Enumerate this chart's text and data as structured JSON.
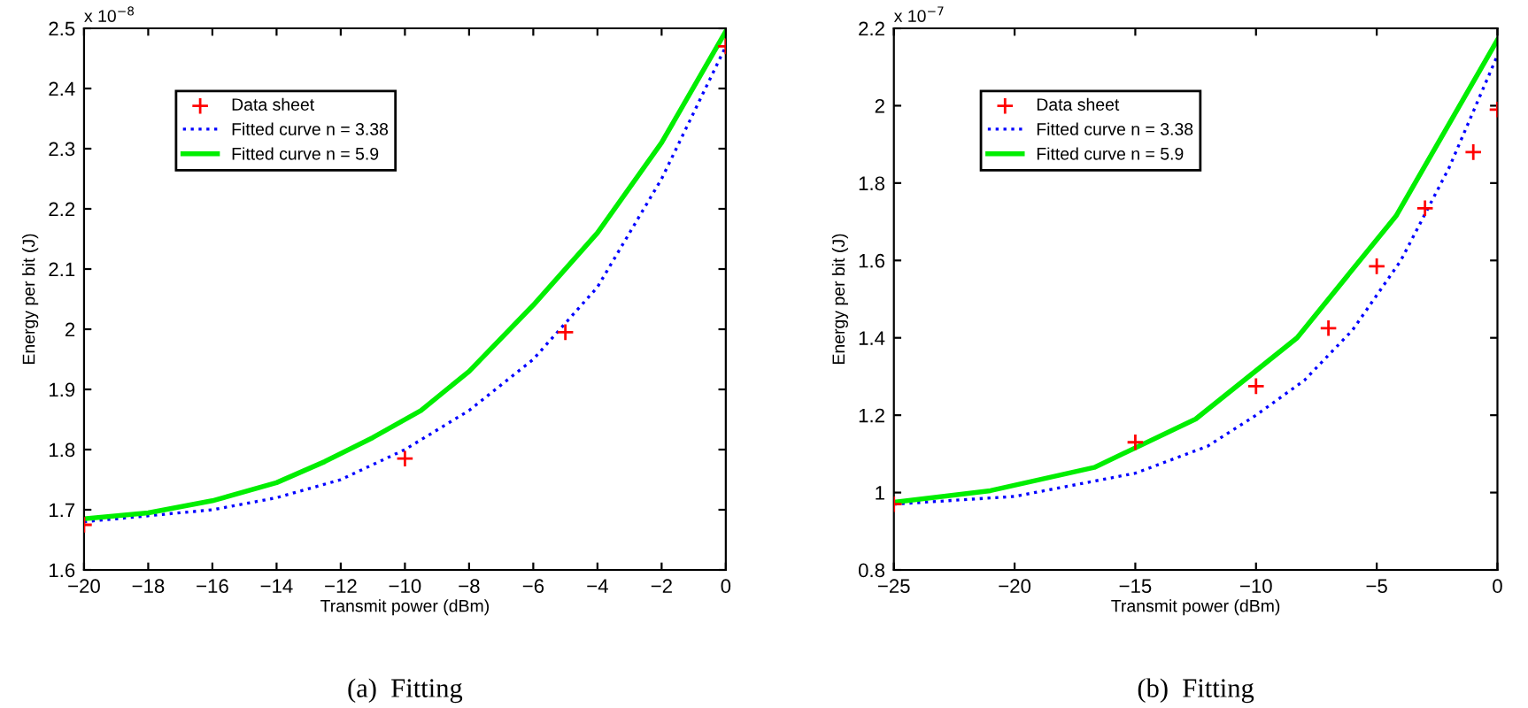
{
  "chart_data": [
    {
      "type": "line",
      "xlabel": "Transmit power (dBm)",
      "ylabel": "Energy per bit (J)",
      "xlim": [
        -20,
        0
      ],
      "xticks": [
        {
          "value": -20,
          "label": "−20"
        },
        {
          "value": -18,
          "label": "−18"
        },
        {
          "value": -16,
          "label": "−16"
        },
        {
          "value": -14,
          "label": "−14"
        },
        {
          "value": -12,
          "label": "−12"
        },
        {
          "value": -10,
          "label": "−10"
        },
        {
          "value": -8,
          "label": "−8"
        },
        {
          "value": -6,
          "label": "−6"
        },
        {
          "value": -4,
          "label": "−4"
        },
        {
          "value": -2,
          "label": "−2"
        },
        0
      ],
      "ylim": [
        1.6,
        2.5
      ],
      "yticks": [
        1.6,
        1.7,
        1.8,
        1.9,
        2,
        2.1,
        2.2,
        2.3,
        2.4,
        2.5
      ],
      "grid": false,
      "legend": "top left",
      "annotations": [
        "x 10$^{−8}$",
        "(a)  Fitting"
      ],
      "series": [
        {
          "name": "Data sheet",
          "type": "scatter",
          "marker": "cross",
          "color": "#ff0000",
          "x": [
            -20,
            -10,
            -5,
            0
          ],
          "values": [
            1.675,
            1.785,
            1.995,
            2.47
          ]
        },
        {
          "name": "Fitted curve n = 3.38",
          "line_style": "dotted",
          "marker": "none",
          "color": "#0000ff",
          "x": [
            -20,
            -18,
            -16,
            -14,
            -12,
            -10,
            -8,
            -6,
            -5,
            -4,
            -2,
            0
          ],
          "values": [
            1.68,
            1.69,
            1.7,
            1.72,
            1.75,
            1.8,
            1.865,
            1.95,
            2.01,
            2.07,
            2.25,
            2.47
          ]
        },
        {
          "name": "Fitted curve n = 5.9",
          "line_style": "solid",
          "marker": "none",
          "color": "#00ee00",
          "x": [
            -20,
            -18,
            -16,
            -14,
            -12.5,
            -11,
            -9.5,
            -8,
            -6,
            -4,
            -2,
            0
          ],
          "values": [
            1.685,
            1.695,
            1.715,
            1.745,
            1.78,
            1.82,
            1.865,
            1.93,
            2.04,
            2.16,
            2.31,
            2.495
          ]
        }
      ]
    },
    {
      "type": "line",
      "xlabel": "Transmit power (dBm)",
      "ylabel": "Energy per bit (J)",
      "xlim": [
        -25,
        0
      ],
      "xticks": [
        {
          "value": -25,
          "label": "−25"
        },
        {
          "value": -20,
          "label": "−20"
        },
        {
          "value": -15,
          "label": "−15"
        },
        {
          "value": -10,
          "label": "−10"
        },
        {
          "value": -5,
          "label": "−5"
        },
        0
      ],
      "ylim": [
        0.8,
        2.2
      ],
      "yticks": [
        0.8,
        1,
        1.2,
        1.4,
        1.6,
        1.8,
        2,
        2.2
      ],
      "grid": false,
      "legend": "top left",
      "annotations": [
        "x 10$^{−7}$",
        "(b)  Fitting"
      ],
      "series": [
        {
          "name": "Data sheet",
          "type": "scatter",
          "marker": "cross",
          "color": "#ff0000",
          "x": [
            -25,
            -15,
            -10,
            -7,
            -5,
            -3,
            -1,
            0
          ],
          "values": [
            0.97,
            1.13,
            1.275,
            1.425,
            1.585,
            1.735,
            1.88,
            1.99
          ]
        },
        {
          "name": "Fitted curve n = 3.38",
          "line_style": "dotted",
          "marker": "none",
          "color": "#0000ff",
          "x": [
            -25,
            -20,
            -15,
            -12,
            -10,
            -8,
            -6,
            -4,
            -2,
            0
          ],
          "values": [
            0.97,
            0.99,
            1.05,
            1.12,
            1.2,
            1.29,
            1.42,
            1.6,
            1.84,
            2.13
          ]
        },
        {
          "name": "Fitted curve n = 5.9",
          "line_style": "solid",
          "marker": "none",
          "color": "#00ee00",
          "x": [
            -25,
            -21,
            -16.7,
            -12.5,
            -8.3,
            -4.2,
            0
          ],
          "values": [
            0.975,
            1.005,
            1.065,
            1.19,
            1.4,
            1.715,
            2.17
          ]
        }
      ]
    }
  ]
}
